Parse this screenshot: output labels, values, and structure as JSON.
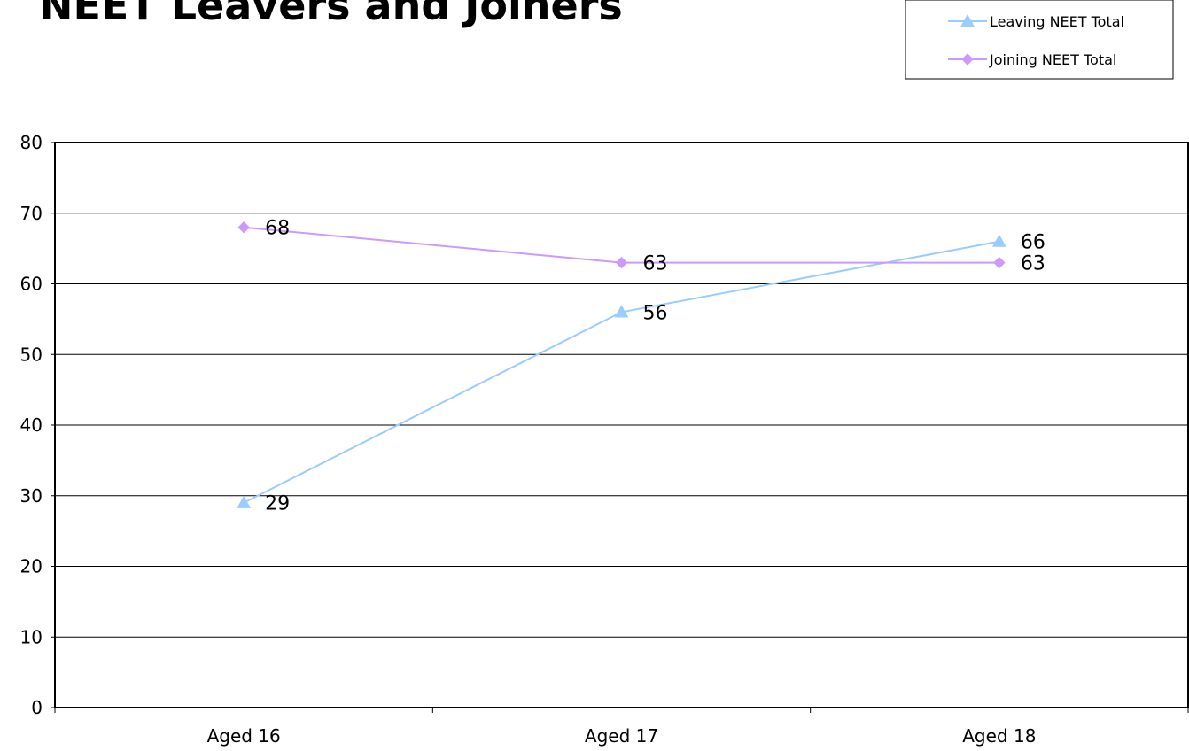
{
  "chart_data": {
    "type": "line",
    "title": "NEET Leavers and Joiners",
    "xlabel": "",
    "ylabel": "",
    "categories": [
      "Aged 16",
      "Aged 17",
      "Aged 18"
    ],
    "ylim": [
      0,
      80
    ],
    "yticks": [
      0,
      10,
      20,
      30,
      40,
      50,
      60,
      70,
      80
    ],
    "grid": true,
    "legend_position": "top-right",
    "series": [
      {
        "name": "Leaving NEET Total",
        "values": [
          29,
          56,
          66
        ],
        "color": "#99CCFF",
        "marker": "triangle"
      },
      {
        "name": "Joining NEET Total",
        "values": [
          68,
          63,
          63
        ],
        "color": "#CC99FF",
        "marker": "diamond"
      }
    ]
  }
}
